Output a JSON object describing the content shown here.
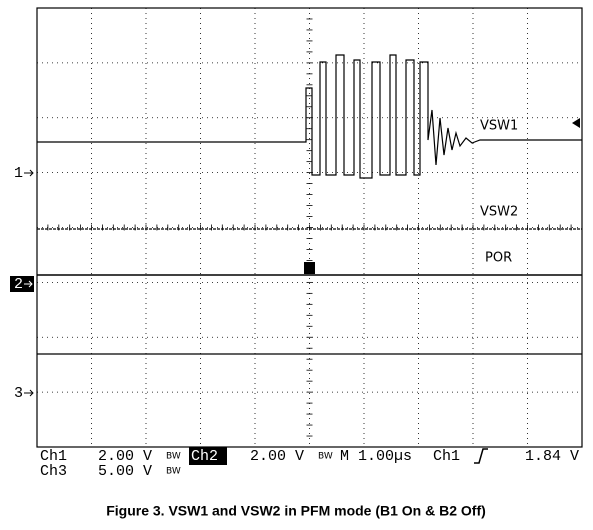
{
  "traces": [
    {
      "label": "VSW1"
    },
    {
      "label": "VSW2"
    },
    {
      "label": "POR"
    }
  ],
  "channel_markers": [
    "1",
    "2",
    "3"
  ],
  "readout": {
    "row1": [
      "Ch1",
      "2.00 V",
      "BW",
      "Ch2",
      "2.00 V",
      "BW",
      "M 1.00µs",
      "Ch1",
      "1.84 V"
    ],
    "row2": [
      "Ch3",
      "5.00 V",
      "BW"
    ]
  },
  "caption": "Figure 3. VSW1 and VSW2 in PFM mode (B1 On & B2 Off)"
}
